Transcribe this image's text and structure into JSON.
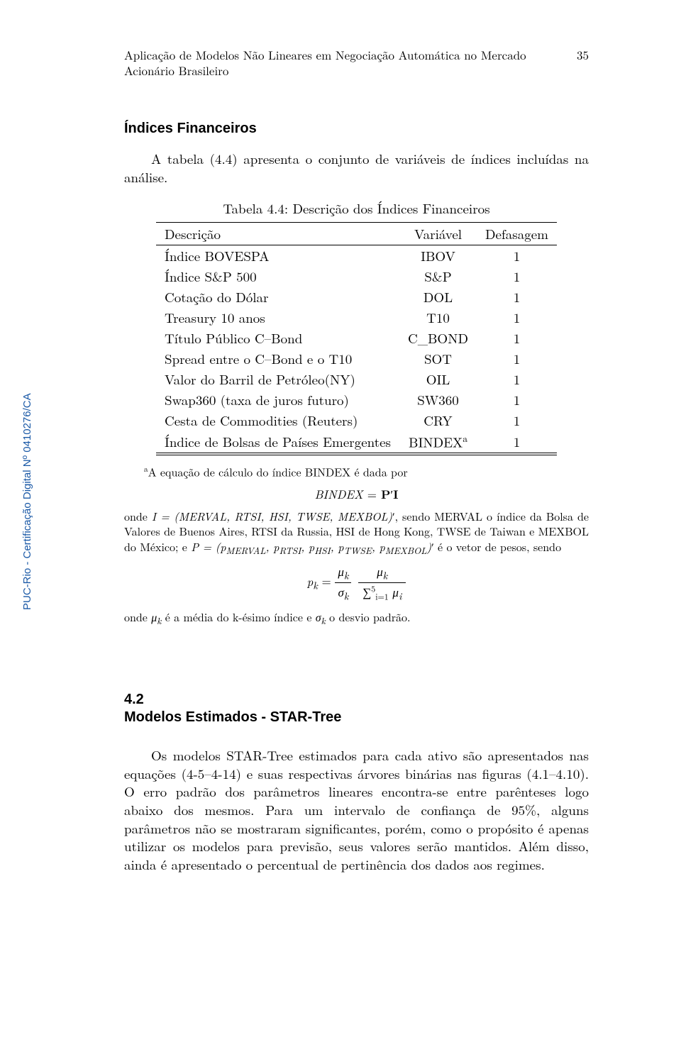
{
  "running_head": {
    "title": "Aplicação de Modelos Não Lineares em Negociação Automática no Mercado Acionário Brasileiro",
    "page_num": "35"
  },
  "section_financial": {
    "heading": "Índices Financeiros",
    "intro": "A tabela (4.4) apresenta o conjunto de variáveis de índices incluídas na análise."
  },
  "table44": {
    "caption": "Tabela 4.4: Descrição dos Índices Financeiros",
    "headers": {
      "desc": "Descrição",
      "var": "Variável",
      "def": "Defasagem"
    },
    "rows": [
      {
        "desc": "Índice BOVESPA",
        "var": "IBOV",
        "def": "1"
      },
      {
        "desc": "Índice S&P 500",
        "var": "S&P",
        "def": "1"
      },
      {
        "desc": "Cotação do Dólar",
        "var": "DOL",
        "def": "1"
      },
      {
        "desc": "Treasury 10 anos",
        "var": "T10",
        "def": "1"
      },
      {
        "desc": "Título Público C–Bond",
        "var": "C_BOND",
        "def": "1"
      },
      {
        "desc": "Spread entre o C–Bond e o T10",
        "var": "SOT",
        "def": "1"
      },
      {
        "desc": "Valor do Barril de Petróleo(NY)",
        "var": "OIL",
        "def": "1"
      },
      {
        "desc": "Swap360 (taxa de juros futuro)",
        "var": "SW360",
        "def": "1"
      },
      {
        "desc": "Cesta de Commodities (Reuters)",
        "var": "CRY",
        "def": "1"
      },
      {
        "desc": "Índice de Bolsas de Países Emergentes",
        "var": "BINDEX",
        "def": "1",
        "sup": "a"
      }
    ]
  },
  "footnote": {
    "lead": "A equação de cálculo do índice BINDEX é dada por",
    "eq1": "BINDEX = P′I",
    "body1_pre": "onde ",
    "body1_I": "I = (MERVAL, RTSI, HSI, TWSE, MEXBOL)′",
    "body1_post": ", sendo MERVAL o índice da Bolsa de Valores de Buenos Aires, RTSI da Russia, HSI de Hong Kong, TWSE de Taiwan e MEXBOL do México; e ",
    "body1_P": "P = (p_MERVAL, p_RTSI, p_HSI, p_TWSE, p_MEXBOL)′",
    "body1_end": " é o vetor de pesos, sendo",
    "body2": "onde μ_k é a média do k-ésimo índice e σ_k o desvio padrão."
  },
  "section42": {
    "num": "4.2",
    "title": "Modelos Estimados - STAR-Tree",
    "para": "Os modelos STAR-Tree estimados para cada ativo são apresentados nas equações (4-5–4-14) e suas respectivas árvores binárias nas figuras (4.1–4.10). O erro padrão dos parâmetros lineares encontra-se entre parênteses logo abaixo dos mesmos. Para um intervalo de confiança de 95%, alguns parâmetros não se mostraram significantes, porém, como o propósito é apenas utilizar os modelos para previsão, seus valores serão mantidos. Além disso, ainda é apresentado o percentual de pertinência dos dados aos regimes."
  },
  "watermark": "PUC-Rio - Certificação Digital Nº 0410276/CA"
}
